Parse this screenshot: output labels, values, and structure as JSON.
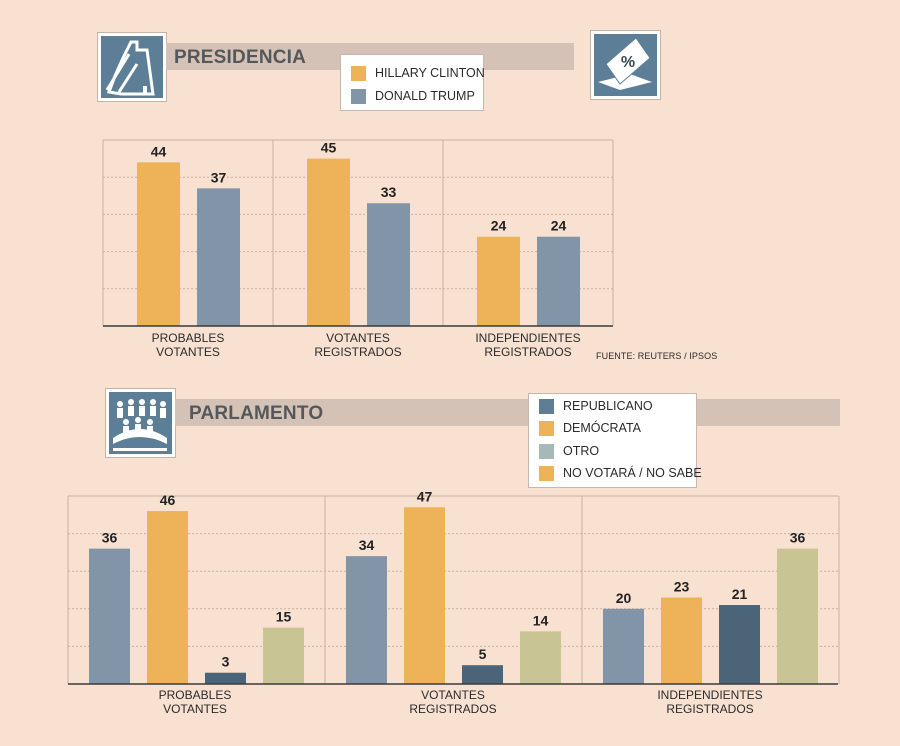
{
  "presidencia": {
    "title": "PRESIDENCIA",
    "legend": [
      {
        "label": "HILLARY CLINTON",
        "color": "#eeb259"
      },
      {
        "label": "DONALD TRUMP",
        "color": "#8294a7"
      }
    ],
    "source": "FUENTE: REUTERS / IPSOS",
    "icon_left": "candidate-podium-icon",
    "icon_right": "ballot-percent-icon"
  },
  "parlamento": {
    "title": "PARLAMENTO",
    "legend": [
      {
        "label": "REPUBLICANO",
        "color": "#8294a7"
      },
      {
        "label": "DEMÓCRATA",
        "color": "#eeb259"
      },
      {
        "label": "OTRO",
        "color": "#a6b8ba"
      },
      {
        "label": "NO VOTARÁ / NO SABE",
        "color": "#eeb259"
      }
    ],
    "icon_left": "parliament-people-icon"
  },
  "chart_data": [
    {
      "type": "bar",
      "title": "PRESIDENCIA",
      "categories": [
        "PROBABLES\nVOTANTES",
        "VOTANTES\nREGISTRADOS",
        "INDEPENDIENTES\nREGISTRADOS"
      ],
      "series": [
        {
          "name": "HILLARY CLINTON",
          "color": "#eeb259",
          "values": [
            44,
            45,
            24
          ]
        },
        {
          "name": "DONALD TRUMP",
          "color": "#8294a7",
          "values": [
            37,
            33,
            24
          ]
        }
      ],
      "ylim": [
        0,
        50
      ],
      "grid": true,
      "legend_position": "top"
    },
    {
      "type": "bar",
      "title": "PARLAMENTO",
      "categories": [
        "PROBABLES\nVOTANTES",
        "VOTANTES\nREGISTRADOS",
        "INDEPENDIENTES\nREGISTRADOS"
      ],
      "series": [
        {
          "name": "REPUBLICANO",
          "color": "#8294a7",
          "values": [
            36,
            34,
            20
          ]
        },
        {
          "name": "DEMÓCRATA",
          "color": "#eeb259",
          "values": [
            46,
            47,
            23
          ]
        },
        {
          "name": "OTRO",
          "color": "#4b6478",
          "values": [
            3,
            5,
            21
          ]
        },
        {
          "name": "NO VOTARÁ / NO SABE",
          "color": "#c9c493",
          "values": [
            15,
            14,
            36
          ]
        }
      ],
      "ylim": [
        0,
        50
      ],
      "grid": true,
      "legend_position": "top"
    }
  ]
}
